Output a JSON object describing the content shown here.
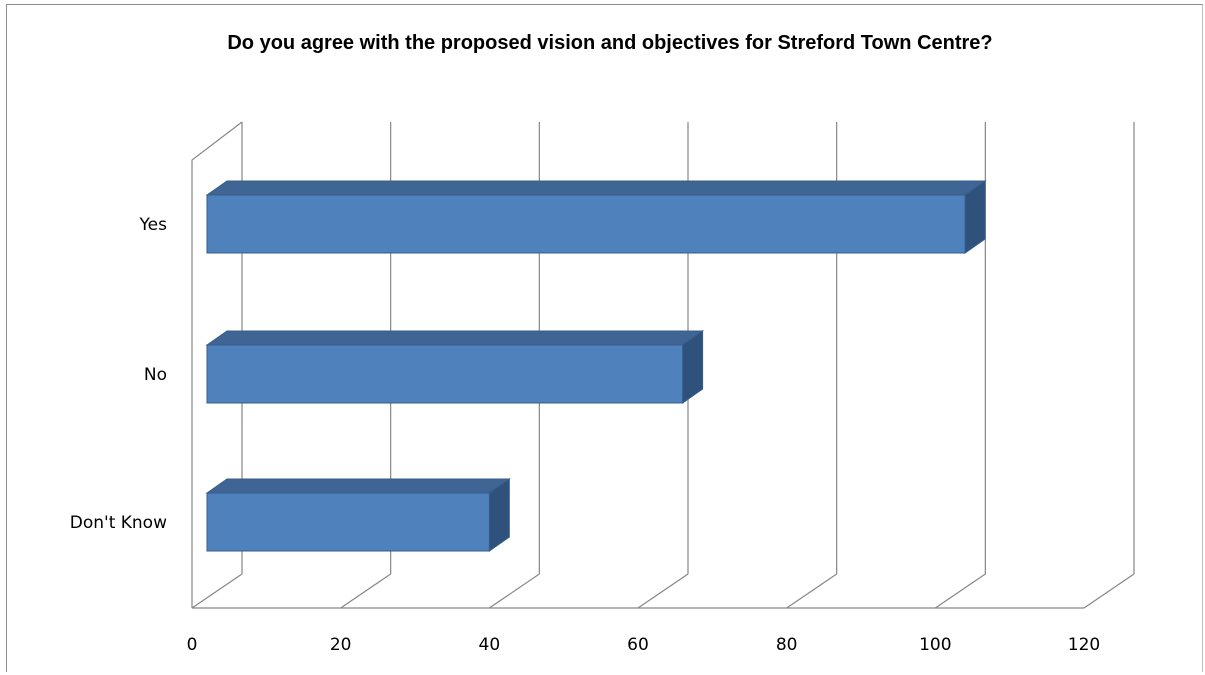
{
  "chart_data": {
    "type": "bar",
    "orientation": "horizontal",
    "style": "3d",
    "title": "Do you agree with the proposed vision and objectives for Streford Town Centre?",
    "categories": [
      "Yes",
      "No",
      "Don't Know"
    ],
    "values": [
      104,
      66,
      40
    ],
    "xlim": [
      0,
      120
    ],
    "x_ticks": [
      "0",
      "20",
      "40",
      "60",
      "80",
      "100",
      "120"
    ],
    "grid": true,
    "legend": "none",
    "colors": {
      "bar_front": "#4f81bd",
      "bar_top": "#3f6594",
      "bar_side": "#2f527c",
      "bar_edge": "#385d8a",
      "grid": "#868686"
    }
  }
}
